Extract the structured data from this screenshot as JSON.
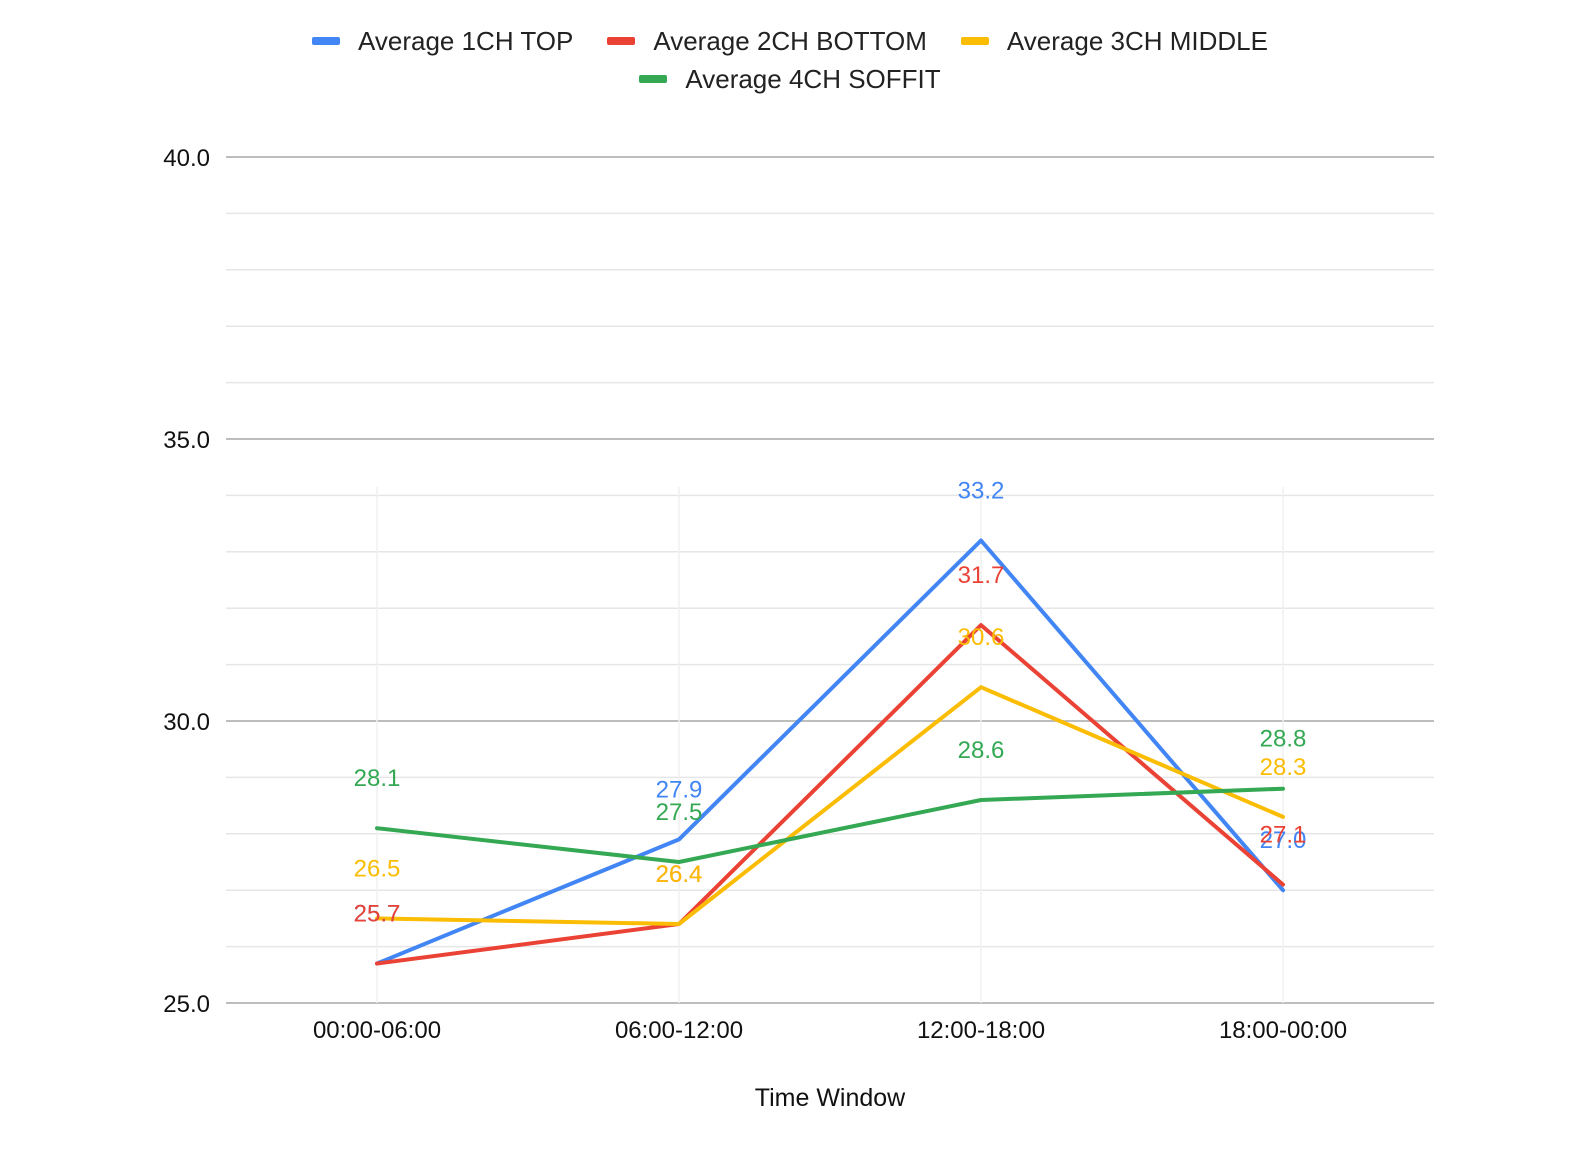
{
  "chart_data": {
    "type": "line",
    "title": "",
    "xlabel": "Time Window",
    "ylabel": "",
    "categories": [
      "00:00-06:00",
      "06:00-12:00",
      "12:00-18:00",
      "18:00-00:00"
    ],
    "ylim": [
      25,
      40
    ],
    "yticks": [
      "25.0",
      "30.0",
      "35.0",
      "40.0"
    ],
    "grid": true,
    "minor_grid": true,
    "legend_position": "top",
    "series": [
      {
        "name": "Average 1CH TOP",
        "color": "#4285F4",
        "values": [
          25.7,
          27.9,
          33.2,
          27.0
        ],
        "labels": [
          "25.7",
          "27.9",
          "33.2",
          "27.0"
        ]
      },
      {
        "name": "Average 2CH BOTTOM",
        "color": "#EA4335",
        "values": [
          25.7,
          26.4,
          31.7,
          27.1
        ],
        "labels": [
          "25.7",
          "26.4",
          "31.7",
          "27.1"
        ]
      },
      {
        "name": "Average 3CH MIDDLE",
        "color": "#FBBC04",
        "values": [
          26.5,
          26.4,
          30.6,
          28.3
        ],
        "labels": [
          "26.5",
          "26.4",
          "30.6",
          "28.3"
        ]
      },
      {
        "name": "Average 4CH SOFFIT",
        "color": "#34A853",
        "values": [
          28.1,
          27.5,
          28.6,
          28.8
        ],
        "labels": [
          "28.1",
          "27.5",
          "28.6",
          "28.8"
        ]
      }
    ]
  }
}
